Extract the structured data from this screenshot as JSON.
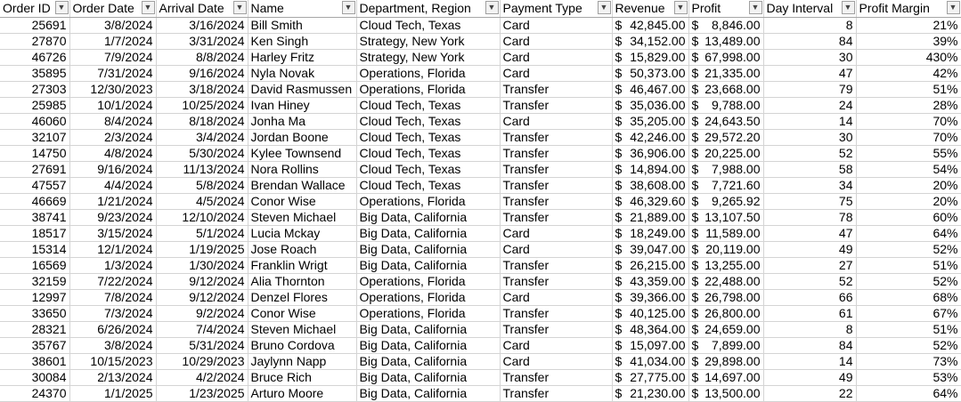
{
  "headers": [
    "Order ID",
    "Order Date",
    "Arrival Date",
    "Name",
    "Department, Region",
    "Payment Type",
    "Revenue",
    "Profit",
    "Day Interval",
    "Profit Margin"
  ],
  "currency_symbol": "$",
  "rows": [
    [
      "25691",
      "3/8/2024",
      "3/16/2024",
      "Bill Smith",
      "Cloud Tech, Texas",
      "Card",
      "42,845.00",
      "8,846.00",
      "8",
      "21%"
    ],
    [
      "27870",
      "1/7/2024",
      "3/31/2024",
      "Ken Singh",
      "Strategy, New York",
      "Card",
      "34,152.00",
      "13,489.00",
      "84",
      "39%"
    ],
    [
      "46726",
      "7/9/2024",
      "8/8/2024",
      "Harley Fritz",
      "Strategy, New York",
      "Card",
      "15,829.00",
      "67,998.00",
      "30",
      "430%"
    ],
    [
      "35895",
      "7/31/2024",
      "9/16/2024",
      "Nyla Novak",
      "Operations, Florida",
      "Card",
      "50,373.00",
      "21,335.00",
      "47",
      "42%"
    ],
    [
      "27303",
      "12/30/2023",
      "3/18/2024",
      "David Rasmussen",
      "Operations, Florida",
      "Transfer",
      "46,467.00",
      "23,668.00",
      "79",
      "51%"
    ],
    [
      "25985",
      "10/1/2024",
      "10/25/2024",
      "Ivan Hiney",
      "Cloud Tech, Texas",
      "Transfer",
      "35,036.00",
      "9,788.00",
      "24",
      "28%"
    ],
    [
      "46060",
      "8/4/2024",
      "8/18/2024",
      "Jonha Ma",
      "Cloud Tech, Texas",
      "Card",
      "35,205.00",
      "24,643.50",
      "14",
      "70%"
    ],
    [
      "32107",
      "2/3/2024",
      "3/4/2024",
      "Jordan Boone",
      "Cloud Tech, Texas",
      "Transfer",
      "42,246.00",
      "29,572.20",
      "30",
      "70%"
    ],
    [
      "14750",
      "4/8/2024",
      "5/30/2024",
      "Kylee Townsend",
      "Cloud Tech, Texas",
      "Transfer",
      "36,906.00",
      "20,225.00",
      "52",
      "55%"
    ],
    [
      "27691",
      "9/16/2024",
      "11/13/2024",
      "Nora Rollins",
      "Cloud Tech, Texas",
      "Transfer",
      "14,894.00",
      "7,988.00",
      "58",
      "54%"
    ],
    [
      "47557",
      "4/4/2024",
      "5/8/2024",
      "Brendan Wallace",
      "Cloud Tech, Texas",
      "Transfer",
      "38,608.00",
      "7,721.60",
      "34",
      "20%"
    ],
    [
      "46669",
      "1/21/2024",
      "4/5/2024",
      "Conor Wise",
      "Operations, Florida",
      "Transfer",
      "46,329.60",
      "9,265.92",
      "75",
      "20%"
    ],
    [
      "38741",
      "9/23/2024",
      "12/10/2024",
      "Steven Michael",
      "Big Data, California",
      "Transfer",
      "21,889.00",
      "13,107.50",
      "78",
      "60%"
    ],
    [
      "18517",
      "3/15/2024",
      "5/1/2024",
      "Lucia Mckay",
      "Big Data, California",
      "Card",
      "18,249.00",
      "11,589.00",
      "47",
      "64%"
    ],
    [
      "15314",
      "12/1/2024",
      "1/19/2025",
      "Jose Roach",
      "Big Data, California",
      "Card",
      "39,047.00",
      "20,119.00",
      "49",
      "52%"
    ],
    [
      "16569",
      "1/3/2024",
      "1/30/2024",
      "Franklin Wrigt",
      "Big Data, California",
      "Transfer",
      "26,215.00",
      "13,255.00",
      "27",
      "51%"
    ],
    [
      "32159",
      "7/22/2024",
      "9/12/2024",
      "Alia Thornton",
      "Operations, Florida",
      "Transfer",
      "43,359.00",
      "22,488.00",
      "52",
      "52%"
    ],
    [
      "12997",
      "7/8/2024",
      "9/12/2024",
      "Denzel Flores",
      "Operations, Florida",
      "Card",
      "39,366.00",
      "26,798.00",
      "66",
      "68%"
    ],
    [
      "33650",
      "7/3/2024",
      "9/2/2024",
      "Conor Wise",
      "Operations, Florida",
      "Transfer",
      "40,125.00",
      "26,800.00",
      "61",
      "67%"
    ],
    [
      "28321",
      "6/26/2024",
      "7/4/2024",
      "Steven Michael",
      "Big Data, California",
      "Transfer",
      "48,364.00",
      "24,659.00",
      "8",
      "51%"
    ],
    [
      "35767",
      "3/8/2024",
      "5/31/2024",
      "Bruno Cordova",
      "Big Data, California",
      "Card",
      "15,097.00",
      "7,899.00",
      "84",
      "52%"
    ],
    [
      "38601",
      "10/15/2023",
      "10/29/2023",
      "Jaylynn Napp",
      "Big Data, California",
      "Card",
      "41,034.00",
      "29,898.00",
      "14",
      "73%"
    ],
    [
      "30084",
      "2/13/2024",
      "4/2/2024",
      "Bruce Rich",
      "Big Data, California",
      "Transfer",
      "27,775.00",
      "14,697.00",
      "49",
      "53%"
    ],
    [
      "24370",
      "1/1/2025",
      "1/23/2025",
      "Arturo Moore",
      "Big Data, California",
      "Transfer",
      "21,230.00",
      "13,500.00",
      "22",
      "64%"
    ]
  ]
}
